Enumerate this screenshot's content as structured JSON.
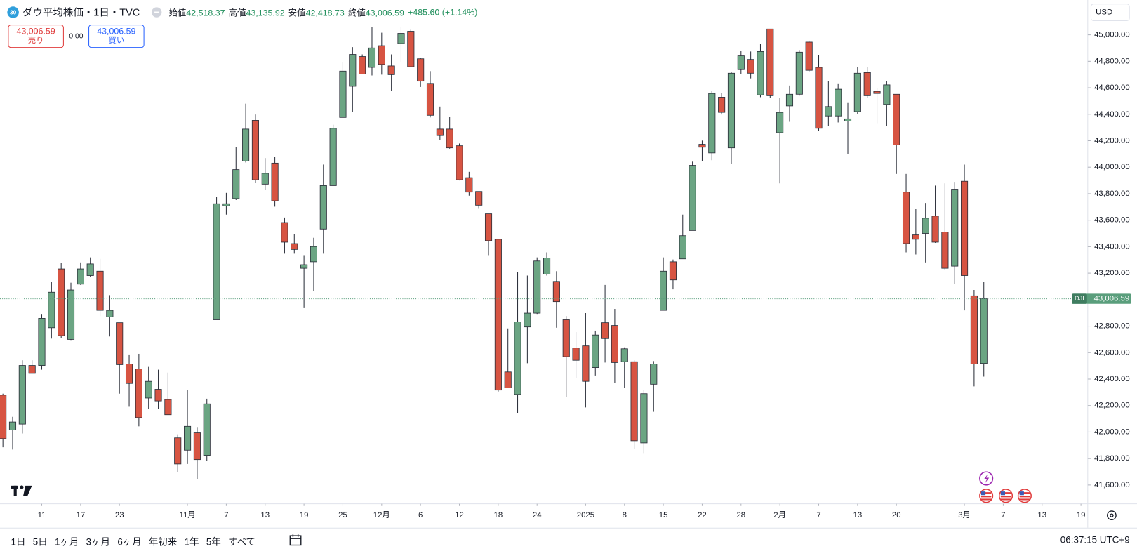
{
  "header": {
    "badge": "30",
    "title": "ダウ平均株価・1日・TVC",
    "ohlc": [
      {
        "label": "始値",
        "value": "42,518.37"
      },
      {
        "label": "高値",
        "value": "43,135.92"
      },
      {
        "label": "安値",
        "value": "42,418.73"
      },
      {
        "label": "終値",
        "value": "43,006.59"
      }
    ],
    "change": "+485.60 (+1.14%)"
  },
  "trade": {
    "sell": {
      "price": "43,006.59",
      "label": "売り"
    },
    "spread": "0.00",
    "buy": {
      "price": "43,006.59",
      "label": "買い"
    }
  },
  "currency": "USD",
  "chart_data": {
    "type": "candlestick",
    "symbol": "DJI",
    "up_color": "#6ba583",
    "down_color": "#d75442",
    "grid": false,
    "open": [
      42279,
      42016,
      42060,
      42503,
      42503,
      42788,
      43232,
      42700,
      43117,
      43182,
      43215,
      42870,
      42826,
      42514,
      42476,
      42257,
      42323,
      42246,
      41956,
      41863,
      41994,
      41824,
      42848,
      43708,
      43763,
      44047,
      44354,
      43872,
      44031,
      43582,
      43423,
      43237,
      43286,
      43533,
      43861,
      44376,
      44611,
      44836,
      44754,
      44918,
      44765,
      44934,
      45027,
      44819,
      44633,
      44288,
      44288,
      44162,
      43921,
      43817,
      43648,
      43456,
      42454,
      42284,
      42794,
      42898,
      43193,
      43138,
      42848,
      42635,
      42651,
      42487,
      42826,
      42805,
      42531,
      42531,
      41918,
      42361,
      42919,
      43286,
      43308,
      43522,
      44173,
      44108,
      44529,
      44146,
      44737,
      44814,
      44546,
      45044,
      44261,
      44463,
      44551,
      44945,
      44754,
      44387,
      44387,
      44348,
      44420,
      44715,
      44573,
      44474,
      44551,
      43812,
      43489,
      43500,
      43631,
      43511,
      43253,
      43894,
      43029,
      42518.37
    ],
    "high": [
      42290,
      42115,
      42542,
      42542,
      42892,
      43133,
      43275,
      43128,
      43281,
      43319,
      43308,
      43034,
      42826,
      42586,
      42591,
      42492,
      42471,
      42449,
      41983,
      42317,
      42038,
      42252,
      43774,
      43806,
      44151,
      44480,
      44398,
      44069,
      44080,
      43620,
      43494,
      43336,
      43467,
      44020,
      44321,
      44797,
      44907,
      44852,
      45060,
      45016,
      44852,
      45060,
      45038,
      44825,
      44726,
      44458,
      44381,
      44179,
      43965,
      43817,
      43648,
      43456,
      42783,
      43210,
      43182,
      43319,
      43357,
      43215,
      42876,
      42755,
      42898,
      42766,
      43111,
      42930,
      42640,
      42542,
      42317,
      42536,
      43319,
      43303,
      43642,
      44042,
      44201,
      44578,
      44562,
      44721,
      44880,
      44874,
      44934,
      45044,
      44524,
      44617,
      44885,
      44956,
      44847,
      44650,
      44633,
      44485,
      44759,
      44759,
      44595,
      44650,
      44551,
      43949,
      43686,
      43730,
      43861,
      43878,
      43889,
      44020,
      43073,
      43135.92
    ],
    "low": [
      41885,
      41868,
      41989,
      42443,
      42471,
      42706,
      42711,
      42690,
      43111,
      43171,
      42876,
      42722,
      42290,
      42191,
      42043,
      42175,
      42175,
      42131,
      41699,
      41759,
      41644,
      41781,
      42848,
      43642,
      43752,
      44036,
      43883,
      43828,
      43702,
      43347,
      43347,
      42936,
      43067,
      43347,
      43861,
      44376,
      44420,
      44704,
      44693,
      44699,
      44578,
      44792,
      44754,
      44606,
      44376,
      44206,
      44140,
      43900,
      43785,
      43691,
      43336,
      42306,
      42334,
      42142,
      42520,
      42892,
      43182,
      42788,
      42262,
      42405,
      42186,
      42427,
      42525,
      42372,
      42334,
      41874,
      41841,
      42153,
      42919,
      43078,
      43308,
      43522,
      44047,
      44053,
      44398,
      44025,
      44704,
      44671,
      44529,
      44524,
      43878,
      44343,
      44540,
      44721,
      44272,
      44310,
      44338,
      44102,
      44403,
      44524,
      44332,
      44310,
      43949,
      43357,
      43341,
      43281,
      43429,
      43226,
      43117,
      42919,
      42345,
      42418.73
    ],
    "close": [
      41950,
      42076,
      42503,
      42443,
      42859,
      43056,
      42728,
      43073,
      43232,
      43270,
      42919,
      42919,
      42509,
      42367,
      42109,
      42383,
      42235,
      42131,
      41759,
      42043,
      41792,
      42213,
      43724,
      43724,
      43982,
      44288,
      43905,
      43954,
      43746,
      43434,
      43379,
      43264,
      43401,
      43861,
      44294,
      44726,
      44852,
      44704,
      44901,
      44776,
      44699,
      45011,
      44759,
      44650,
      44392,
      44239,
      44146,
      43905,
      43812,
      43713,
      43445,
      42317,
      42334,
      42832,
      42898,
      43292,
      43314,
      42985,
      42569,
      42542,
      42383,
      42733,
      42706,
      42525,
      42629,
      41934,
      42290,
      42514,
      43215,
      43149,
      43483,
      44014,
      44151,
      44557,
      44414,
      44710,
      44841,
      44710,
      44874,
      44540,
      44414,
      44551,
      44869,
      44732,
      44294,
      44458,
      44589,
      44365,
      44710,
      44540,
      44557,
      44622,
      44168,
      43423,
      43456,
      43615,
      43434,
      43237,
      43834,
      43182,
      42514,
      43006.59
    ],
    "xlim": [
      -0.3,
      111.7
    ],
    "xticks": [
      {
        "value": 4,
        "label": "11"
      },
      {
        "value": 8,
        "label": "17"
      },
      {
        "value": 12,
        "label": "23"
      },
      {
        "value": 19,
        "label": "11月"
      },
      {
        "value": 23,
        "label": "7"
      },
      {
        "value": 27,
        "label": "13"
      },
      {
        "value": 31,
        "label": "19"
      },
      {
        "value": 35,
        "label": "25"
      },
      {
        "value": 39,
        "label": "12月"
      },
      {
        "value": 43,
        "label": "6"
      },
      {
        "value": 47,
        "label": "12"
      },
      {
        "value": 51,
        "label": "18"
      },
      {
        "value": 55,
        "label": "24"
      },
      {
        "value": 60,
        "label": "2025"
      },
      {
        "value": 64,
        "label": "8"
      },
      {
        "value": 68,
        "label": "15"
      },
      {
        "value": 72,
        "label": "22"
      },
      {
        "value": 76,
        "label": "28"
      },
      {
        "value": 80,
        "label": "2月"
      },
      {
        "value": 84,
        "label": "7"
      },
      {
        "value": 88,
        "label": "13"
      },
      {
        "value": 92,
        "label": "20"
      },
      {
        "value": 99,
        "label": "3月"
      },
      {
        "value": 103,
        "label": "7"
      },
      {
        "value": 107,
        "label": "13"
      },
      {
        "value": 111,
        "label": "19"
      }
    ],
    "ylim": [
      41458,
      45263
    ],
    "yticks": [
      {
        "value": 41600,
        "label": "41,600.00"
      },
      {
        "value": 41800,
        "label": "41,800.00"
      },
      {
        "value": 42000,
        "label": "42,000.00"
      },
      {
        "value": 42200,
        "label": "42,200.00"
      },
      {
        "value": 42400,
        "label": "42,400.00"
      },
      {
        "value": 42600,
        "label": "42,600.00"
      },
      {
        "value": 42800,
        "label": "42,800.00"
      },
      {
        "value": 43000,
        "label": "43,000.00"
      },
      {
        "value": 43200,
        "label": "43,200.00"
      },
      {
        "value": 43400,
        "label": "43,400.00"
      },
      {
        "value": 43600,
        "label": "43,600.00"
      },
      {
        "value": 43800,
        "label": "43,800.00"
      },
      {
        "value": 44000,
        "label": "44,000.00"
      },
      {
        "value": 44200,
        "label": "44,200.00"
      },
      {
        "value": 44400,
        "label": "44,400.00"
      },
      {
        "value": 44600,
        "label": "44,600.00"
      },
      {
        "value": 44800,
        "label": "44,800.00"
      },
      {
        "value": 45000,
        "label": "45,000.00"
      }
    ],
    "last_price": {
      "value": 43006.59,
      "label": "43,006.59",
      "color": "#5a9e7c"
    }
  },
  "toolbar": {
    "ranges": [
      "1日",
      "5日",
      "1ヶ月",
      "3ヶ月",
      "6ヶ月",
      "年初来",
      "1年",
      "5年",
      "すべて"
    ],
    "clock": "06:37:15 UTC+9"
  }
}
